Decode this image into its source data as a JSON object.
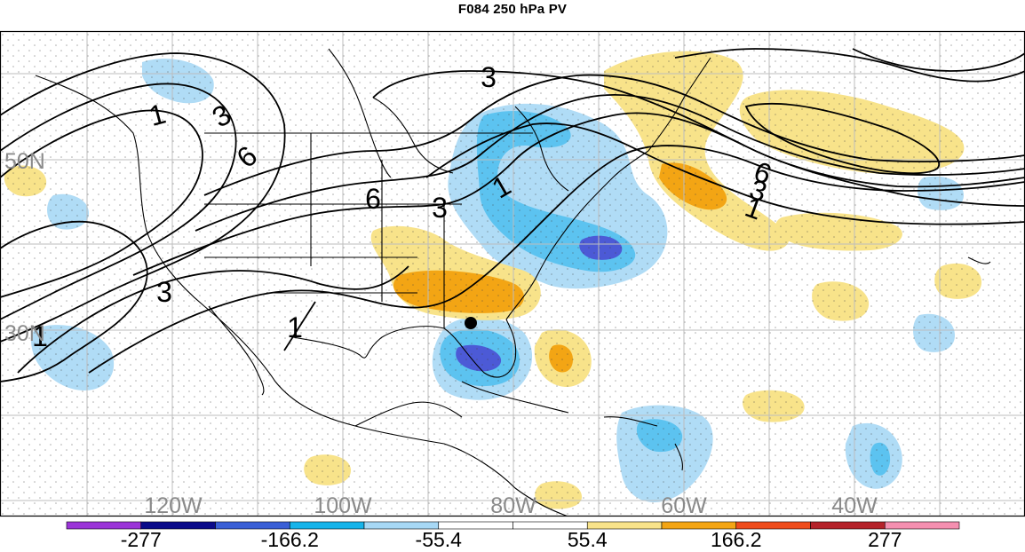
{
  "title": "F084 250 hPa PV",
  "lat_labels": [
    "50N",
    "30N"
  ],
  "lon_labels": [
    "120W",
    "100W",
    "80W",
    "60W",
    "40W"
  ],
  "contour_labels": [
    "1",
    "3",
    "6"
  ],
  "colorbar": {
    "labels": [
      "-277",
      "-166.2",
      "-55.4",
      "55.4",
      "166.2",
      "277"
    ],
    "colors": [
      "#9b35d8",
      "#0b0b8a",
      "#3a5fd6",
      "#16b4ea",
      "#a7d8f5",
      "#ffffff",
      "#ffffff",
      "#f8e38a",
      "#f3a514",
      "#ef4c1c",
      "#b5222a",
      "#f58fb0"
    ]
  },
  "shading": {
    "strong_negative": "#4c5ad6",
    "negative": "#5cc3f0",
    "weak_negative": "#b0dcf6",
    "weak_positive": "#f8e38a",
    "positive": "#f3a514"
  },
  "marker": "storm-center-dot"
}
